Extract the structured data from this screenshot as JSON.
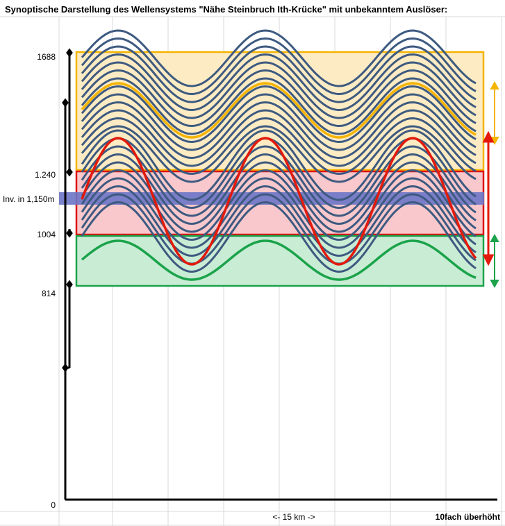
{
  "title": "Synoptische Darstellung des Wellensystems \"Nähe Steinbruch Ith-Krücke\" mit unbekanntem Auslöser:",
  "labels": {
    "h1688": "1688",
    "h1240": "1.240",
    "inversion": "Inv. in 1,150m",
    "h1004": "1004",
    "h814": "814",
    "h0": "0",
    "scale": "<- 15 km ->",
    "exaggeration": "10fach überhöht"
  },
  "colors": {
    "wave": "#3d5a80",
    "yellow_band": "#fdebc4",
    "yellow_border": "#f4b400",
    "red_band": "#f8c8cc",
    "red_border": "#dd1111",
    "green_band": "#c9ecd5",
    "green_border": "#1aa34a",
    "inversion": "#6b74c6"
  }
}
